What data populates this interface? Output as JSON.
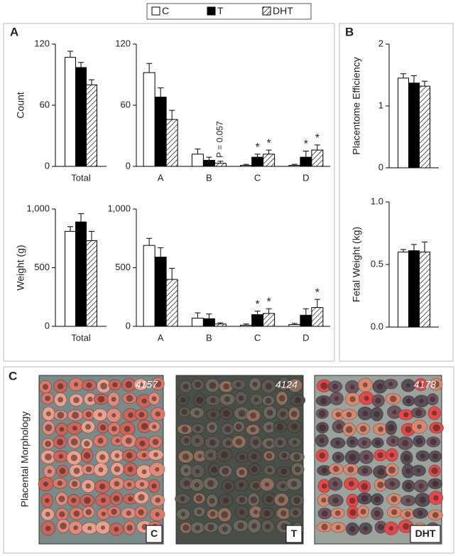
{
  "legend": [
    {
      "name": "C",
      "color": "#ffffff"
    },
    {
      "name": "T",
      "color": "#000000"
    },
    {
      "name": "DHT",
      "color": "#ffffff",
      "hatch": true
    }
  ],
  "panel_labels": [
    "A",
    "B",
    "C"
  ],
  "photo_panel_title": "Placental Morphology",
  "photos": [
    {
      "id": "4157",
      "label": "C"
    },
    {
      "id": "4124",
      "label": "T"
    },
    {
      "id": "4178",
      "label": "DHT"
    }
  ],
  "chart_data": [
    {
      "type": "bar",
      "ylabel": "Count",
      "categories": [
        "Total"
      ],
      "ylim": [
        0,
        120
      ],
      "yticks": [
        0,
        60,
        120
      ],
      "series": [
        {
          "name": "C",
          "values": [
            107
          ],
          "errors": [
            6
          ]
        },
        {
          "name": "T",
          "values": [
            97
          ],
          "errors": [
            5
          ]
        },
        {
          "name": "DHT",
          "values": [
            80
          ],
          "errors": [
            5
          ]
        }
      ]
    },
    {
      "type": "bar",
      "categories": [
        "A",
        "B",
        "C",
        "D"
      ],
      "ylim": [
        0,
        120
      ],
      "yticks": [
        0,
        60,
        120
      ],
      "series": [
        {
          "name": "C",
          "values": [
            92,
            12,
            1,
            1
          ],
          "errors": [
            9,
            5,
            1,
            1
          ]
        },
        {
          "name": "T",
          "values": [
            68,
            6,
            9,
            9
          ],
          "errors": [
            9,
            3,
            3,
            6
          ]
        },
        {
          "name": "DHT",
          "values": [
            46,
            3,
            12,
            16
          ],
          "errors": [
            9,
            2,
            4,
            5
          ]
        }
      ],
      "annotations": [
        {
          "text": "P = 0.057",
          "category": "B",
          "series": "DHT"
        },
        {
          "text": "*",
          "category": "C",
          "series": "T"
        },
        {
          "text": "*",
          "category": "C",
          "series": "DHT"
        },
        {
          "text": "*",
          "category": "D",
          "series": "T"
        },
        {
          "text": "*",
          "category": "D",
          "series": "DHT"
        }
      ]
    },
    {
      "type": "bar",
      "ylabel": "Weight (g)",
      "categories": [
        "Total"
      ],
      "ylim": [
        0,
        1000
      ],
      "yticks": [
        0,
        500,
        {
          "value": 1000,
          "label": "1,000"
        }
      ],
      "series": [
        {
          "name": "C",
          "values": [
            810
          ],
          "errors": [
            40
          ]
        },
        {
          "name": "T",
          "values": [
            890
          ],
          "errors": [
            70
          ]
        },
        {
          "name": "DHT",
          "values": [
            730
          ],
          "errors": [
            80
          ]
        }
      ]
    },
    {
      "type": "bar",
      "categories": [
        "A",
        "B",
        "C",
        "D"
      ],
      "ylim": [
        0,
        1000
      ],
      "yticks": [
        0,
        500,
        {
          "value": 1000,
          "label": "1,000"
        }
      ],
      "series": [
        {
          "name": "C",
          "values": [
            690,
            70,
            10,
            15
          ],
          "errors": [
            60,
            45,
            10,
            10
          ]
        },
        {
          "name": "T",
          "values": [
            590,
            65,
            100,
            95
          ],
          "errors": [
            80,
            40,
            30,
            55
          ]
        },
        {
          "name": "DHT",
          "values": [
            400,
            20,
            110,
            160
          ],
          "errors": [
            95,
            10,
            40,
            70
          ]
        }
      ],
      "annotations": [
        {
          "text": "*",
          "category": "C",
          "series": "T"
        },
        {
          "text": "*",
          "category": "C",
          "series": "DHT"
        },
        {
          "text": "*",
          "category": "D",
          "series": "DHT"
        }
      ]
    },
    {
      "type": "bar",
      "ylabel": "Placentome Efficiency",
      "categories": [
        null
      ],
      "ylim": [
        0,
        2
      ],
      "yticks": [
        0,
        1,
        2
      ],
      "series": [
        {
          "name": "C",
          "values": [
            1.45
          ],
          "errors": [
            0.07
          ]
        },
        {
          "name": "T",
          "values": [
            1.37
          ],
          "errors": [
            0.12
          ]
        },
        {
          "name": "DHT",
          "values": [
            1.32
          ],
          "errors": [
            0.08
          ]
        }
      ]
    },
    {
      "type": "bar",
      "ylabel": "Fetal Weight (kg)",
      "categories": [
        null
      ],
      "ylim": [
        0,
        1
      ],
      "yticks": [
        {
          "value": 0,
          "label": "0.0"
        },
        {
          "value": 0.5,
          "label": "0.5"
        },
        {
          "value": 1,
          "label": "1.0"
        }
      ],
      "series": [
        {
          "name": "C",
          "values": [
            0.6
          ],
          "errors": [
            0.02
          ]
        },
        {
          "name": "T",
          "values": [
            0.61
          ],
          "errors": [
            0.05
          ]
        },
        {
          "name": "DHT",
          "values": [
            0.6
          ],
          "errors": [
            0.08
          ]
        }
      ]
    }
  ]
}
